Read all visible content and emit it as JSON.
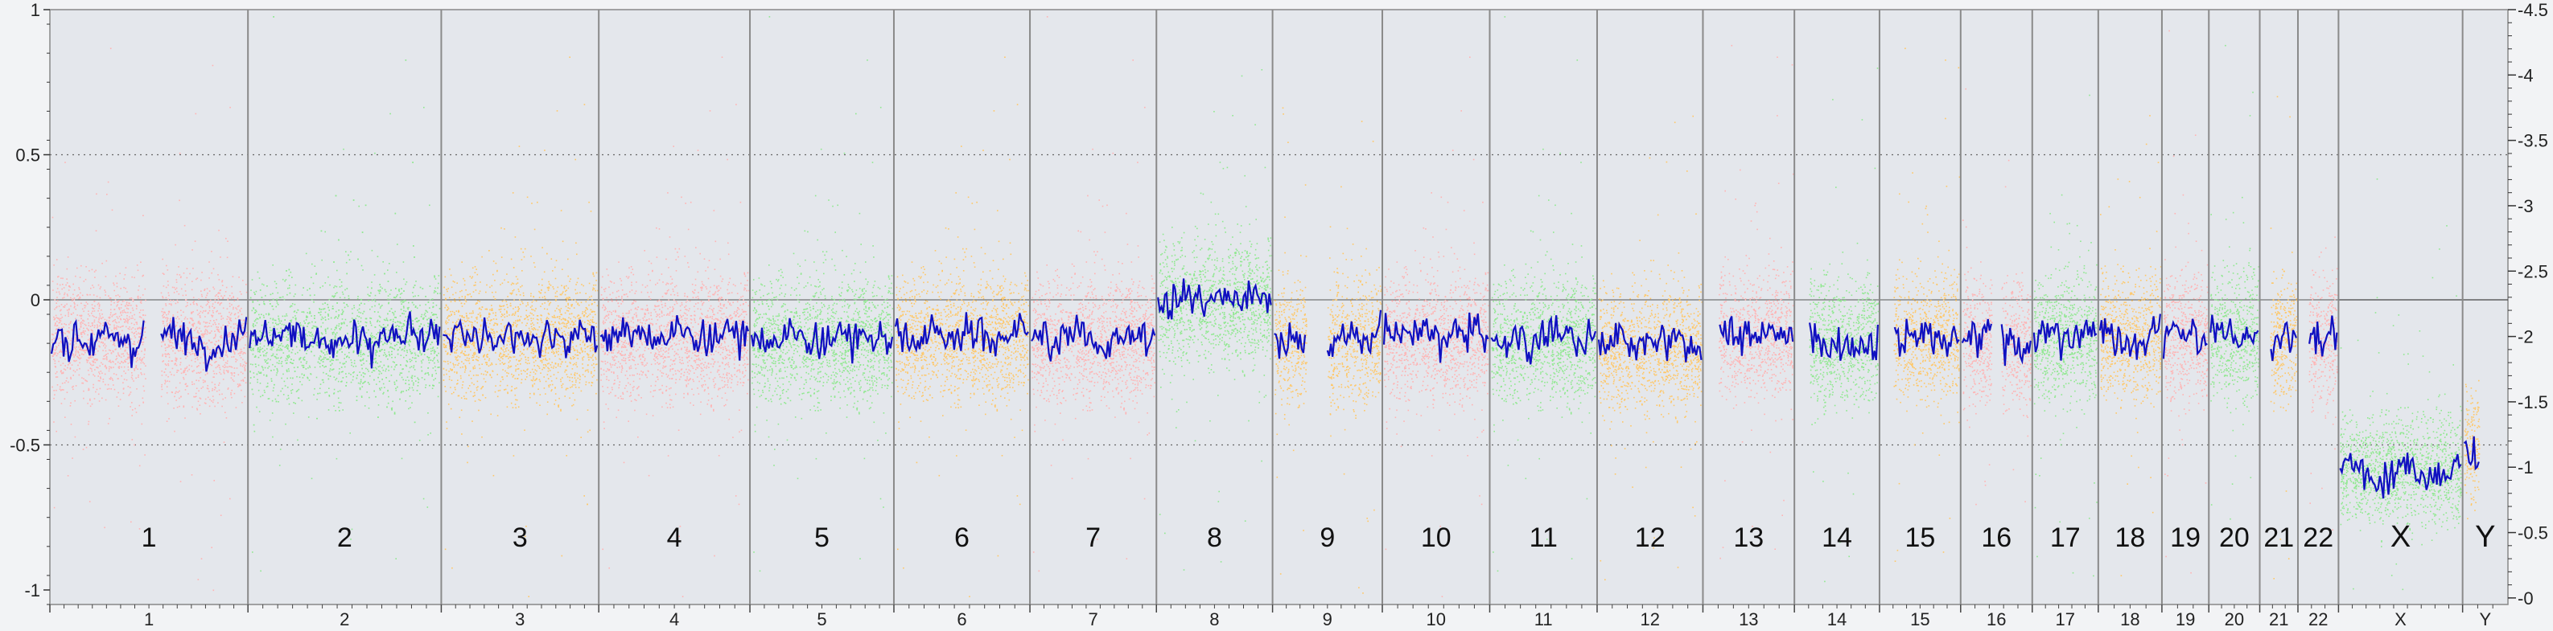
{
  "chart_data": {
    "type": "scatter",
    "left_axis": {
      "ylim": [
        -1.05,
        1
      ],
      "ticks": [
        1,
        0.5,
        0,
        -0.5,
        -1
      ],
      "tick_labels": [
        "1",
        "0.5",
        "0",
        "-0.5",
        "-1"
      ]
    },
    "right_axis": {
      "ylim": [
        -0.05,
        4.5
      ],
      "ticks": [
        4.5,
        4,
        3.5,
        3,
        2.5,
        2,
        1.5,
        1,
        0.5,
        0
      ],
      "tick_labels": [
        "4.5",
        "4",
        "3.5",
        "3",
        "2.5",
        "2",
        "1.5",
        "1",
        "0.5",
        "0"
      ]
    },
    "gridlines_dotted": [
      0.5,
      -0.5
    ],
    "point_colors": [
      "#ffb3b3",
      "#8fe88f",
      "#ffc766"
    ],
    "trend_color": "#1010c0",
    "chromosomes": [
      {
        "name": "1",
        "start": 0,
        "end": 249,
        "color": "#ffb3b3",
        "mean": -0.13,
        "gap": [
          0.48,
          0.56
        ]
      },
      {
        "name": "2",
        "start": 249,
        "end": 492,
        "color": "#8fe88f",
        "mean": -0.13,
        "gap": null
      },
      {
        "name": "3",
        "start": 492,
        "end": 690,
        "color": "#ffc766",
        "mean": -0.12,
        "gap": null
      },
      {
        "name": "4",
        "start": 690,
        "end": 880,
        "color": "#ffb3b3",
        "mean": -0.12,
        "gap": null
      },
      {
        "name": "5",
        "start": 880,
        "end": 1061,
        "color": "#8fe88f",
        "mean": -0.13,
        "gap": null
      },
      {
        "name": "6",
        "start": 1061,
        "end": 1232,
        "color": "#ffc766",
        "mean": -0.12,
        "gap": null
      },
      {
        "name": "7",
        "start": 1232,
        "end": 1391,
        "color": "#ffb3b3",
        "mean": -0.13,
        "gap": null
      },
      {
        "name": "8",
        "start": 1391,
        "end": 1537,
        "color": "#8fe88f",
        "mean": 0.0,
        "gap": null
      },
      {
        "name": "9",
        "start": 1537,
        "end": 1675,
        "color": "#ffc766",
        "mean": -0.14,
        "gap": [
          0.3,
          0.5
        ]
      },
      {
        "name": "10",
        "start": 1675,
        "end": 1810,
        "color": "#ffb3b3",
        "mean": -0.12,
        "gap": null
      },
      {
        "name": "11",
        "start": 1810,
        "end": 1945,
        "color": "#8fe88f",
        "mean": -0.13,
        "gap": null
      },
      {
        "name": "12",
        "start": 1945,
        "end": 2078,
        "color": "#ffc766",
        "mean": -0.16,
        "gap": null
      },
      {
        "name": "13",
        "start": 2078,
        "end": 2193,
        "color": "#ffb3b3",
        "mean": -0.12,
        "gap": [
          0.0,
          0.16
        ]
      },
      {
        "name": "14",
        "start": 2193,
        "end": 2300,
        "color": "#8fe88f",
        "mean": -0.14,
        "gap": [
          0.0,
          0.16
        ]
      },
      {
        "name": "15",
        "start": 2300,
        "end": 2402,
        "color": "#ffc766",
        "mean": -0.13,
        "gap": [
          0.0,
          0.16
        ]
      },
      {
        "name": "16",
        "start": 2402,
        "end": 2492,
        "color": "#ffb3b3",
        "mean": -0.14,
        "gap": [
          0.43,
          0.57
        ]
      },
      {
        "name": "17",
        "start": 2492,
        "end": 2575,
        "color": "#8fe88f",
        "mean": -0.13,
        "gap": null
      },
      {
        "name": "18",
        "start": 2575,
        "end": 2655,
        "color": "#ffc766",
        "mean": -0.12,
        "gap": null
      },
      {
        "name": "19",
        "start": 2655,
        "end": 2714,
        "color": "#ffb3b3",
        "mean": -0.13,
        "gap": null
      },
      {
        "name": "20",
        "start": 2714,
        "end": 2778,
        "color": "#8fe88f",
        "mean": -0.12,
        "gap": null
      },
      {
        "name": "21",
        "start": 2778,
        "end": 2826,
        "color": "#ffc766",
        "mean": -0.13,
        "gap": [
          0.0,
          0.25
        ]
      },
      {
        "name": "22",
        "start": 2826,
        "end": 2877,
        "color": "#ffb3b3",
        "mean": -0.14,
        "gap": [
          0.0,
          0.25
        ]
      },
      {
        "name": "X",
        "start": 2877,
        "end": 3033,
        "color": "#8fe88f",
        "mean": -0.58,
        "gap": null
      },
      {
        "name": "Y",
        "start": 3033,
        "end": 3090,
        "color": "#ffc766",
        "mean": -0.52,
        "gap": [
          0.35,
          1.0
        ]
      }
    ]
  }
}
